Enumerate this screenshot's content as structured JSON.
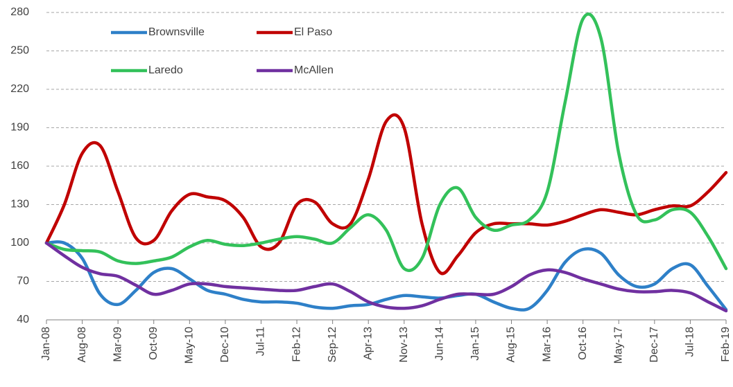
{
  "chart_data": {
    "type": "line",
    "categories": [
      "Jan-08",
      null,
      "Aug-08",
      null,
      "Mar-09",
      null,
      "Oct-09",
      null,
      "May-10",
      null,
      "Dec-10",
      null,
      "Jul-11",
      null,
      "Feb-12",
      null,
      "Sep-12",
      null,
      "Apr-13",
      null,
      "Nov-13",
      null,
      "Jun-14",
      null,
      "Jan-15",
      null,
      "Aug-15",
      null,
      "Mar-16",
      null,
      "Oct-16",
      null,
      "May-17",
      null,
      "Dec-17",
      null,
      "Jul-18",
      null,
      "Feb-19"
    ],
    "series": [
      {
        "name": "Brownsville",
        "color": "#2e80c8",
        "values": [
          100,
          100,
          88,
          60,
          52,
          63,
          77,
          80,
          72,
          63,
          60,
          56,
          54,
          54,
          53,
          50,
          49,
          51,
          52,
          56,
          59,
          58,
          57,
          59,
          60,
          54,
          49,
          49,
          63,
          85,
          95,
          92,
          75,
          66,
          68,
          80,
          83,
          66,
          48
        ]
      },
      {
        "name": "El Paso",
        "color": "#c00000",
        "values": [
          100,
          130,
          170,
          176,
          140,
          104,
          102,
          125,
          138,
          136,
          133,
          120,
          97,
          100,
          130,
          132,
          115,
          115,
          150,
          195,
          190,
          115,
          77,
          90,
          108,
          115,
          115,
          115,
          114,
          117,
          122,
          126,
          124,
          122,
          126,
          129,
          129,
          140,
          155
        ]
      },
      {
        "name": "Laredo",
        "color": "#33c15a",
        "values": [
          100,
          95,
          94,
          93,
          86,
          84,
          86,
          89,
          97,
          102,
          99,
          98,
          100,
          103,
          105,
          103,
          100,
          112,
          122,
          110,
          80,
          88,
          130,
          143,
          120,
          110,
          114,
          118,
          140,
          210,
          275,
          260,
          170,
          122,
          118,
          126,
          124,
          105,
          80
        ]
      },
      {
        "name": "McAllen",
        "color": "#7030a0",
        "values": [
          100,
          90,
          81,
          76,
          74,
          67,
          60,
          63,
          68,
          68,
          66,
          65,
          64,
          63,
          63,
          66,
          68,
          62,
          54,
          50,
          49,
          51,
          56,
          60,
          60,
          60,
          66,
          75,
          79,
          77,
          72,
          68,
          64,
          62,
          62,
          63,
          61,
          54,
          47
        ]
      }
    ],
    "ylim": [
      40,
      280
    ],
    "yticks": [
      40,
      70,
      100,
      130,
      160,
      190,
      220,
      250,
      280
    ],
    "grid": true
  }
}
